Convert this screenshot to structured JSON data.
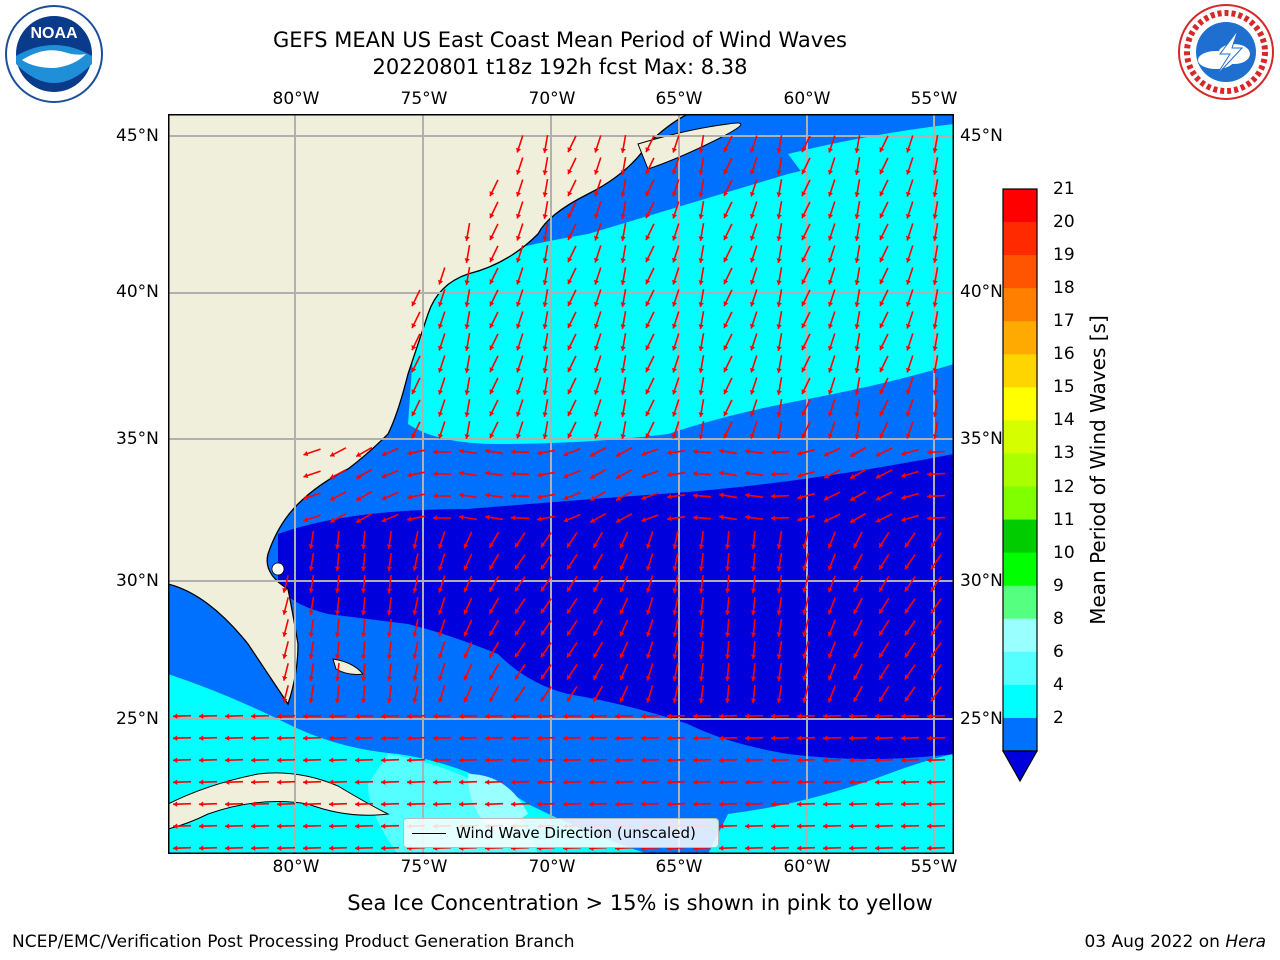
{
  "header": {
    "title_line1": "GEFS MEAN US East Coast Mean Period of Wind Waves",
    "title_line2": "20220801 t18z 192h fcst   Max: 8.38"
  },
  "map": {
    "lon_labels": [
      "80°W",
      "75°W",
      "70°W",
      "65°W",
      "60°W",
      "55°W"
    ],
    "lat_labels": [
      "45°N",
      "40°N",
      "35°N",
      "30°N",
      "25°N"
    ],
    "legend_label": "Wind Wave Direction (unscaled)",
    "arrow_color": "#ff0000",
    "land_color": "#efefdc",
    "colors": {
      "deep_blue": "#0000dd",
      "mid_blue": "#0070ff",
      "cyan": "#00ffff",
      "light_cyan": "#99ffff"
    }
  },
  "colorbar": {
    "title": "Mean Period of Wind Waves [s]",
    "ticks": [
      "21",
      "20",
      "19",
      "18",
      "17",
      "16",
      "15",
      "14",
      "13",
      "12",
      "11",
      "10",
      "9",
      "8",
      "6",
      "4",
      "2"
    ],
    "colors": [
      "#ff0000",
      "#ff2a00",
      "#ff5500",
      "#ff8000",
      "#ffaa00",
      "#ffd500",
      "#ffff00",
      "#d5ff00",
      "#aaff00",
      "#80ff00",
      "#00cc00",
      "#00ff00",
      "#55ff80",
      "#99ffff",
      "#55ffff",
      "#00ffff",
      "#0070ff"
    ],
    "under_color": "#0000dd"
  },
  "logos": {
    "noaa": "NOAA",
    "nws": "NATIONAL WEATHER SERVICE"
  },
  "footer": {
    "note": "Sea Ice Concentration > 15% is shown in pink to yellow",
    "left": "NCEP/EMC/Verification Post Processing Product Generation Branch",
    "right_date": "03 Aug 2022 on ",
    "right_machine": "Hera"
  }
}
